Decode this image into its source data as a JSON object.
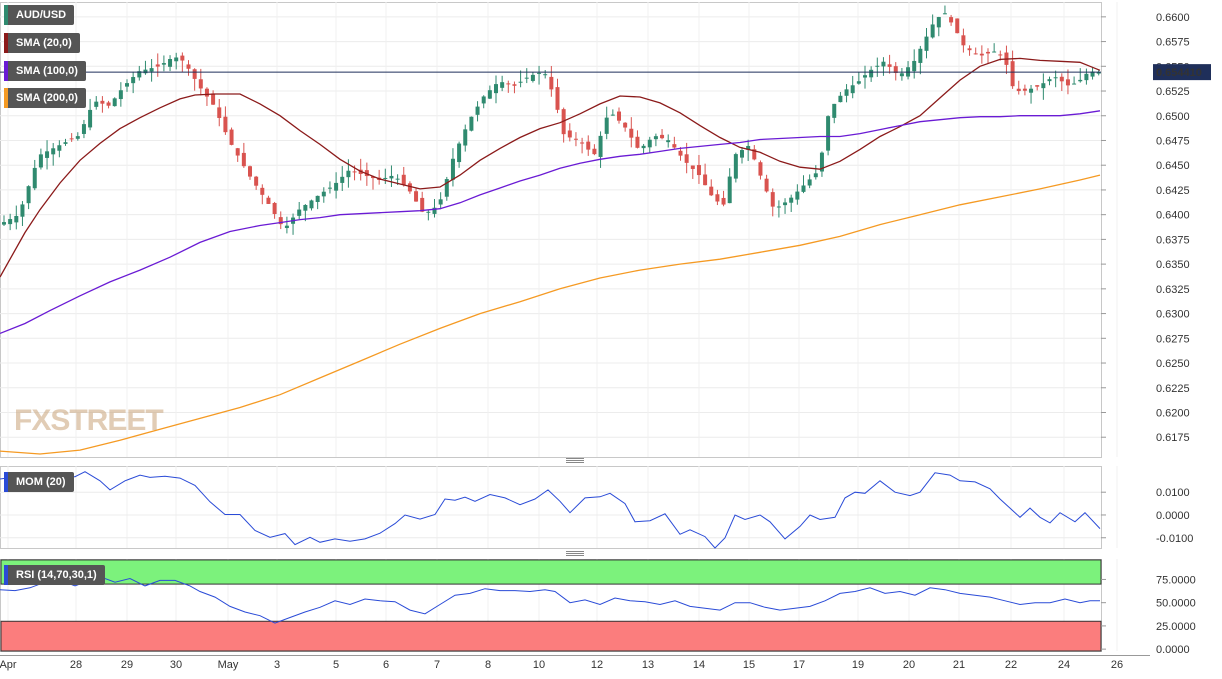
{
  "chart_data": {
    "type": "candlestick",
    "symbol": "AUD/USD",
    "last_price": "0.654410",
    "ylim": [
      0.6155,
      0.6615
    ],
    "yticks": [
      "0.6600",
      "0.6575",
      "0.6550",
      "0.6525",
      "0.6500",
      "0.6475",
      "0.6450",
      "0.6425",
      "0.6400",
      "0.6375",
      "0.6350",
      "0.6325",
      "0.6300",
      "0.6275",
      "0.6250",
      "0.6225",
      "0.6200",
      "0.6175"
    ],
    "xticks": [
      "Apr",
      "28",
      "29",
      "30",
      "May",
      "3",
      "5",
      "6",
      "7",
      "8",
      "10",
      "12",
      "13",
      "14",
      "15",
      "17",
      "19",
      "20",
      "21",
      "22",
      "24",
      "26"
    ],
    "indicators": [
      {
        "name": "SMA (20,0)",
        "color": "#8b1a1a",
        "points": [
          [
            0,
            0.6337
          ],
          [
            10,
            0.6355
          ],
          [
            25,
            0.6382
          ],
          [
            40,
            0.6405
          ],
          [
            60,
            0.6432
          ],
          [
            80,
            0.6455
          ],
          [
            100,
            0.6472
          ],
          [
            120,
            0.6487
          ],
          [
            140,
            0.6498
          ],
          [
            160,
            0.6508
          ],
          [
            180,
            0.6517
          ],
          [
            195,
            0.6521
          ],
          [
            215,
            0.6522
          ],
          [
            240,
            0.6522
          ],
          [
            260,
            0.6512
          ],
          [
            280,
            0.65
          ],
          [
            300,
            0.6485
          ],
          [
            320,
            0.6471
          ],
          [
            340,
            0.6456
          ],
          [
            360,
            0.6444
          ],
          [
            380,
            0.6436
          ],
          [
            400,
            0.6431
          ],
          [
            420,
            0.6426
          ],
          [
            440,
            0.6428
          ],
          [
            460,
            0.644
          ],
          [
            480,
            0.6455
          ],
          [
            500,
            0.6467
          ],
          [
            520,
            0.6478
          ],
          [
            540,
            0.6487
          ],
          [
            560,
            0.6493
          ],
          [
            580,
            0.6502
          ],
          [
            600,
            0.6512
          ],
          [
            620,
            0.652
          ],
          [
            640,
            0.6519
          ],
          [
            660,
            0.6513
          ],
          [
            680,
            0.6503
          ],
          [
            700,
            0.649
          ],
          [
            720,
            0.6478
          ],
          [
            740,
            0.6468
          ],
          [
            760,
            0.6463
          ],
          [
            780,
            0.6454
          ],
          [
            800,
            0.6448
          ],
          [
            820,
            0.6446
          ],
          [
            840,
            0.6454
          ],
          [
            860,
            0.6466
          ],
          [
            880,
            0.6479
          ],
          [
            900,
            0.6489
          ],
          [
            920,
            0.65
          ],
          [
            940,
            0.6518
          ],
          [
            960,
            0.6536
          ],
          [
            980,
            0.655
          ],
          [
            1000,
            0.6557
          ],
          [
            1020,
            0.6558
          ],
          [
            1040,
            0.6556
          ],
          [
            1060,
            0.6555
          ],
          [
            1080,
            0.6554
          ],
          [
            1090,
            0.655
          ],
          [
            1100,
            0.6546
          ]
        ]
      },
      {
        "name": "SMA (100,0)",
        "color": "#6a1bd4",
        "points": [
          [
            0,
            0.628
          ],
          [
            25,
            0.629
          ],
          [
            50,
            0.6303
          ],
          [
            80,
            0.6318
          ],
          [
            110,
            0.6332
          ],
          [
            140,
            0.6344
          ],
          [
            170,
            0.6357
          ],
          [
            200,
            0.6372
          ],
          [
            230,
            0.6383
          ],
          [
            260,
            0.6389
          ],
          [
            280,
            0.6392
          ],
          [
            300,
            0.6395
          ],
          [
            320,
            0.6397
          ],
          [
            340,
            0.64
          ],
          [
            360,
            0.6401
          ],
          [
            380,
            0.6402
          ],
          [
            400,
            0.6403
          ],
          [
            420,
            0.6404
          ],
          [
            440,
            0.6406
          ],
          [
            460,
            0.6412
          ],
          [
            480,
            0.642
          ],
          [
            500,
            0.6427
          ],
          [
            520,
            0.6434
          ],
          [
            540,
            0.644
          ],
          [
            560,
            0.6447
          ],
          [
            580,
            0.6452
          ],
          [
            600,
            0.6456
          ],
          [
            620,
            0.6459
          ],
          [
            640,
            0.6461
          ],
          [
            660,
            0.6464
          ],
          [
            680,
            0.6467
          ],
          [
            700,
            0.6469
          ],
          [
            720,
            0.6471
          ],
          [
            740,
            0.6473
          ],
          [
            760,
            0.6476
          ],
          [
            780,
            0.6477
          ],
          [
            800,
            0.6478
          ],
          [
            820,
            0.6479
          ],
          [
            840,
            0.6479
          ],
          [
            860,
            0.6482
          ],
          [
            880,
            0.6486
          ],
          [
            900,
            0.649
          ],
          [
            920,
            0.6494
          ],
          [
            940,
            0.6496
          ],
          [
            960,
            0.6498
          ],
          [
            980,
            0.6499
          ],
          [
            1000,
            0.6499
          ],
          [
            1020,
            0.65
          ],
          [
            1040,
            0.65
          ],
          [
            1060,
            0.65
          ],
          [
            1080,
            0.6502
          ],
          [
            1100,
            0.6505
          ]
        ]
      },
      {
        "name": "SMA (200,0)",
        "color": "#f59a23",
        "points": [
          [
            0,
            0.6161
          ],
          [
            40,
            0.6158
          ],
          [
            80,
            0.6162
          ],
          [
            120,
            0.6172
          ],
          [
            160,
            0.6183
          ],
          [
            200,
            0.6194
          ],
          [
            240,
            0.6205
          ],
          [
            280,
            0.6218
          ],
          [
            320,
            0.6235
          ],
          [
            360,
            0.6252
          ],
          [
            400,
            0.6269
          ],
          [
            440,
            0.6285
          ],
          [
            480,
            0.63
          ],
          [
            520,
            0.6312
          ],
          [
            560,
            0.6325
          ],
          [
            600,
            0.6336
          ],
          [
            640,
            0.6344
          ],
          [
            680,
            0.635
          ],
          [
            720,
            0.6355
          ],
          [
            760,
            0.6362
          ],
          [
            800,
            0.6369
          ],
          [
            840,
            0.6378
          ],
          [
            880,
            0.639
          ],
          [
            920,
            0.64
          ],
          [
            960,
            0.641
          ],
          [
            1000,
            0.6418
          ],
          [
            1040,
            0.6426
          ],
          [
            1080,
            0.6435
          ],
          [
            1100,
            0.644
          ]
        ]
      }
    ],
    "momentum": {
      "name": "MOM (20)",
      "ylim": [
        -0.0145,
        0.0215
      ],
      "yticks": [
        "0.0100",
        "0.0000",
        "-0.0100"
      ],
      "color": "#2a4bd7",
      "points": [
        [
          0,
          0.0158
        ],
        [
          20,
          0.017
        ],
        [
          40,
          0.0163
        ],
        [
          60,
          0.0168
        ],
        [
          75,
          0.0168
        ],
        [
          85,
          0.019
        ],
        [
          100,
          0.015
        ],
        [
          110,
          0.011
        ],
        [
          125,
          0.015
        ],
        [
          140,
          0.0175
        ],
        [
          150,
          0.0165
        ],
        [
          165,
          0.017
        ],
        [
          180,
          0.0162
        ],
        [
          195,
          0.013
        ],
        [
          210,
          0.0058
        ],
        [
          225,
          0.0002
        ],
        [
          240,
          0.0002
        ],
        [
          255,
          -0.0068
        ],
        [
          270,
          -0.0098
        ],
        [
          285,
          -0.0082
        ],
        [
          295,
          -0.013
        ],
        [
          310,
          -0.0098
        ],
        [
          320,
          -0.012
        ],
        [
          335,
          -0.0105
        ],
        [
          350,
          -0.0115
        ],
        [
          365,
          -0.0105
        ],
        [
          380,
          -0.008
        ],
        [
          395,
          -0.0038
        ],
        [
          405,
          0.0
        ],
        [
          420,
          -0.0018
        ],
        [
          435,
          0.0002
        ],
        [
          445,
          0.007
        ],
        [
          455,
          0.0065
        ],
        [
          465,
          0.0078
        ],
        [
          475,
          0.006
        ],
        [
          490,
          0.009
        ],
        [
          505,
          0.0075
        ],
        [
          520,
          0.0045
        ],
        [
          535,
          0.007
        ],
        [
          548,
          0.011
        ],
        [
          560,
          0.006
        ],
        [
          570,
          0.001
        ],
        [
          585,
          0.0075
        ],
        [
          600,
          0.008
        ],
        [
          610,
          0.0095
        ],
        [
          625,
          0.005
        ],
        [
          635,
          -0.003
        ],
        [
          650,
          -0.0025
        ],
        [
          665,
          0.0005
        ],
        [
          680,
          -0.0085
        ],
        [
          690,
          -0.0065
        ],
        [
          705,
          -0.0095
        ],
        [
          715,
          -0.0145
        ],
        [
          725,
          -0.01
        ],
        [
          735,
          0.0
        ],
        [
          745,
          -0.002
        ],
        [
          760,
          0.0
        ],
        [
          770,
          -0.003
        ],
        [
          785,
          -0.0105
        ],
        [
          800,
          -0.005
        ],
        [
          810,
          0.0
        ],
        [
          820,
          -0.002
        ],
        [
          835,
          -0.001
        ],
        [
          845,
          0.0075
        ],
        [
          855,
          0.01
        ],
        [
          865,
          0.0095
        ],
        [
          880,
          0.015
        ],
        [
          895,
          0.01
        ],
        [
          910,
          0.0085
        ],
        [
          920,
          0.01
        ],
        [
          935,
          0.0185
        ],
        [
          950,
          0.0175
        ],
        [
          960,
          0.015
        ],
        [
          975,
          0.0145
        ],
        [
          990,
          0.0115
        ],
        [
          1000,
          0.007
        ],
        [
          1010,
          0.003
        ],
        [
          1020,
          -0.001
        ],
        [
          1030,
          0.003
        ],
        [
          1040,
          -0.001
        ],
        [
          1050,
          -0.0035
        ],
        [
          1060,
          0.001
        ],
        [
          1075,
          -0.003
        ],
        [
          1085,
          0.001
        ],
        [
          1100,
          -0.006
        ]
      ]
    },
    "rsi": {
      "name": "RSI (14,70,30,1)",
      "ylim": [
        -2,
        97
      ],
      "yticks": [
        "75.0000",
        "50.0000",
        "25.0000",
        "0.0000"
      ],
      "color": "#2a4bd7",
      "overbought": 70,
      "oversold": 30,
      "points": [
        [
          0,
          64
        ],
        [
          15,
          63
        ],
        [
          30,
          66
        ],
        [
          45,
          72
        ],
        [
          60,
          74
        ],
        [
          75,
          68
        ],
        [
          90,
          74
        ],
        [
          100,
          78
        ],
        [
          115,
          72
        ],
        [
          130,
          76
        ],
        [
          145,
          68
        ],
        [
          160,
          74
        ],
        [
          175,
          74
        ],
        [
          190,
          68
        ],
        [
          200,
          62
        ],
        [
          215,
          56
        ],
        [
          230,
          46
        ],
        [
          245,
          40
        ],
        [
          260,
          36
        ],
        [
          275,
          28
        ],
        [
          290,
          34
        ],
        [
          305,
          40
        ],
        [
          320,
          45
        ],
        [
          335,
          52
        ],
        [
          350,
          48
        ],
        [
          365,
          54
        ],
        [
          380,
          52
        ],
        [
          395,
          51
        ],
        [
          410,
          42
        ],
        [
          425,
          38
        ],
        [
          440,
          48
        ],
        [
          455,
          58
        ],
        [
          470,
          60
        ],
        [
          485,
          65
        ],
        [
          500,
          63
        ],
        [
          515,
          63
        ],
        [
          530,
          62
        ],
        [
          545,
          64
        ],
        [
          555,
          62
        ],
        [
          570,
          50
        ],
        [
          585,
          53
        ],
        [
          600,
          48
        ],
        [
          615,
          55
        ],
        [
          630,
          52
        ],
        [
          645,
          51
        ],
        [
          660,
          48
        ],
        [
          675,
          52
        ],
        [
          690,
          46
        ],
        [
          705,
          44
        ],
        [
          720,
          42
        ],
        [
          735,
          50
        ],
        [
          750,
          50
        ],
        [
          765,
          45
        ],
        [
          780,
          42
        ],
        [
          795,
          44
        ],
        [
          810,
          46
        ],
        [
          825,
          52
        ],
        [
          840,
          60
        ],
        [
          855,
          62
        ],
        [
          870,
          66
        ],
        [
          885,
          60
        ],
        [
          900,
          62
        ],
        [
          915,
          58
        ],
        [
          930,
          66
        ],
        [
          945,
          64
        ],
        [
          960,
          60
        ],
        [
          975,
          58
        ],
        [
          990,
          56
        ],
        [
          1005,
          52
        ],
        [
          1020,
          48
        ],
        [
          1035,
          50
        ],
        [
          1050,
          50
        ],
        [
          1065,
          54
        ],
        [
          1080,
          50
        ],
        [
          1090,
          52
        ],
        [
          1100,
          52
        ]
      ]
    }
  },
  "price_candles_hint": "rendered by script from compact generator"
}
